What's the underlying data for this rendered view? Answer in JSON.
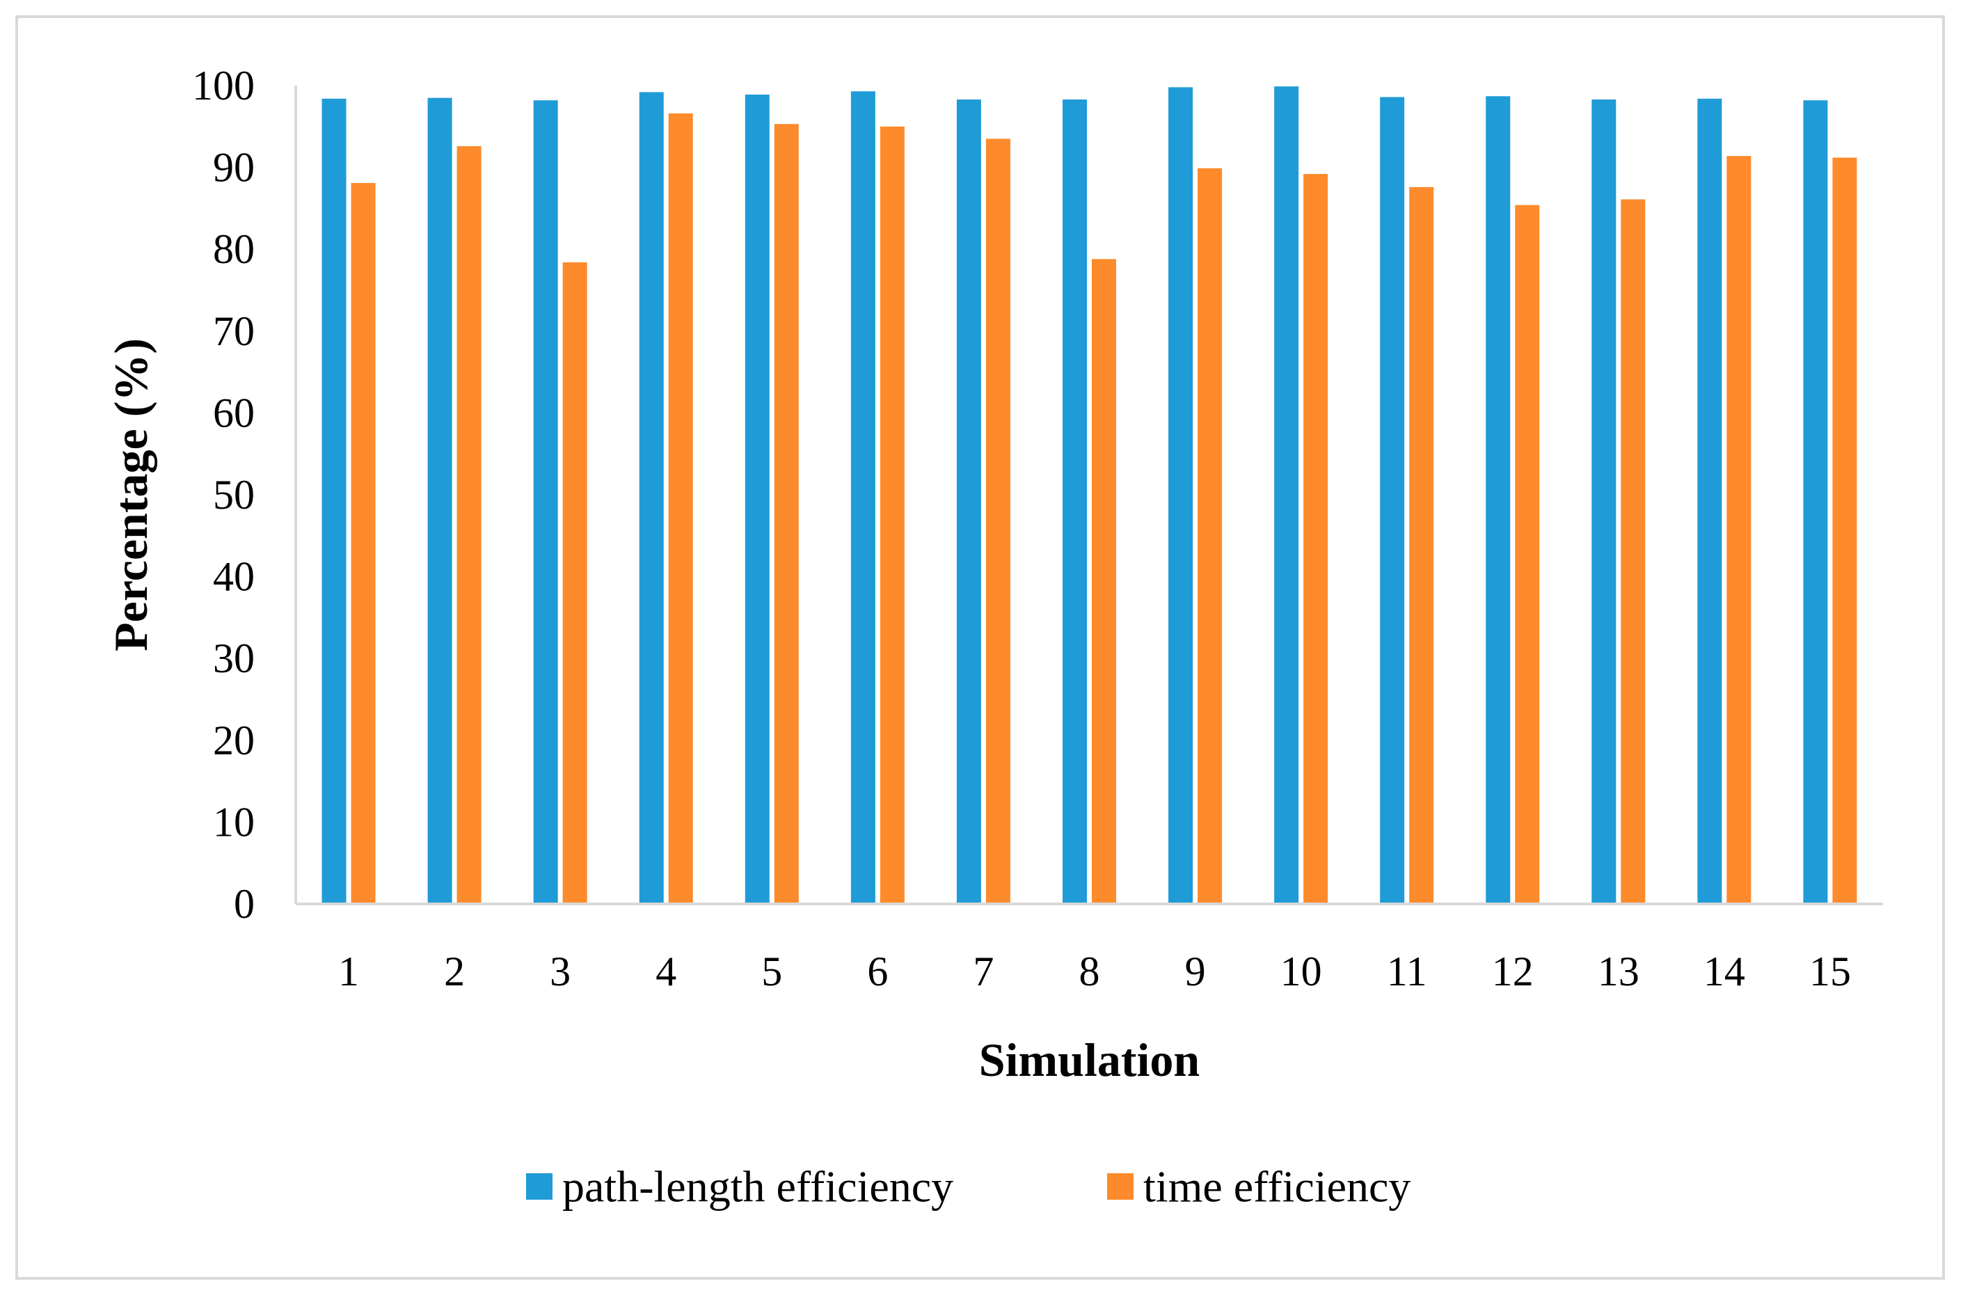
{
  "chart_data": {
    "type": "bar",
    "title": "",
    "xlabel": "Simulation",
    "ylabel": "Percentage (%)",
    "ylim": [
      0,
      100
    ],
    "yticks": [
      0,
      10,
      20,
      30,
      40,
      50,
      60,
      70,
      80,
      90,
      100
    ],
    "grid": false,
    "legend_position": "bottom",
    "categories": [
      "1",
      "2",
      "3",
      "4",
      "5",
      "6",
      "7",
      "8",
      "9",
      "10",
      "11",
      "12",
      "13",
      "14",
      "15"
    ],
    "series": [
      {
        "name": "path-length efficiency",
        "color": "#1f9bd7",
        "values": [
          98.4,
          98.5,
          98.2,
          99.2,
          98.9,
          99.3,
          98.3,
          98.3,
          99.8,
          99.9,
          98.6,
          98.7,
          98.3,
          98.4,
          98.2
        ]
      },
      {
        "name": "time efficiency",
        "color": "#fd8a2b",
        "values": [
          88.1,
          92.6,
          78.4,
          96.6,
          95.3,
          95.0,
          93.5,
          78.8,
          89.9,
          89.2,
          87.6,
          85.4,
          86.1,
          91.4,
          91.2
        ]
      }
    ]
  }
}
